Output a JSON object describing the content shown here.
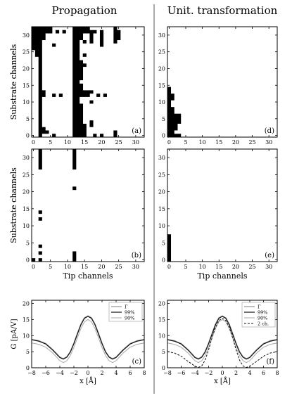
{
  "titles": {
    "left": "Propagation",
    "right": "Unit. transformation"
  },
  "colors": {
    "ink": "#000000",
    "black_curve": "#111111",
    "gray_dark": "#6f6f6f",
    "gray_light": "#a8a8a8",
    "divider": "#555555"
  },
  "chart_data": [
    {
      "type": "heatmap",
      "panel": "(a)",
      "column": "Propagation",
      "xlabel": "",
      "ylabel": "Substrate channels",
      "xlim": [
        -0.5,
        32.5
      ],
      "ylim": [
        -0.5,
        32.5
      ],
      "xticks": [
        0,
        5,
        10,
        15,
        20,
        25,
        30
      ],
      "yticks": [
        0,
        5,
        10,
        15,
        20,
        25,
        30
      ],
      "filled_cells": [
        [
          0,
          26,
          32
        ],
        [
          1,
          24,
          32
        ],
        [
          2,
          0,
          32
        ],
        [
          3,
          1,
          2
        ],
        [
          3,
          12,
          13
        ],
        [
          3,
          29,
          32
        ],
        [
          4,
          1,
          1
        ],
        [
          4,
          31,
          32
        ],
        [
          5,
          31,
          32
        ],
        [
          6,
          0,
          0
        ],
        [
          6,
          12,
          12
        ],
        [
          6,
          27,
          27
        ],
        [
          7,
          31,
          31
        ],
        [
          8,
          12,
          12
        ],
        [
          9,
          31,
          31
        ],
        [
          12,
          0,
          32
        ],
        [
          13,
          0,
          32
        ],
        [
          14,
          0,
          9
        ],
        [
          14,
          12,
          15
        ],
        [
          14,
          17,
          22
        ],
        [
          14,
          29,
          32
        ],
        [
          15,
          0,
          3
        ],
        [
          15,
          12,
          13
        ],
        [
          15,
          21,
          21
        ],
        [
          15,
          24,
          24
        ],
        [
          15,
          28,
          28
        ],
        [
          15,
          31,
          32
        ],
        [
          16,
          12,
          13
        ],
        [
          16,
          31,
          32
        ],
        [
          17,
          3,
          4
        ],
        [
          17,
          10,
          10
        ],
        [
          17,
          13,
          13
        ],
        [
          17,
          28,
          31
        ],
        [
          18,
          0,
          0
        ],
        [
          18,
          31,
          31
        ],
        [
          19,
          12,
          12
        ],
        [
          20,
          0,
          0
        ],
        [
          20,
          27,
          31
        ],
        [
          21,
          12,
          12
        ],
        [
          24,
          0,
          1
        ],
        [
          24,
          28,
          32
        ],
        [
          25,
          29,
          31
        ]
      ]
    },
    {
      "type": "heatmap",
      "panel": "(b)",
      "column": "Propagation",
      "xlabel": "Tip channels",
      "ylabel": "Substrate channels",
      "xlim": [
        -0.5,
        32.5
      ],
      "ylim": [
        -0.5,
        32.5
      ],
      "xticks": [
        0,
        5,
        10,
        15,
        20,
        25,
        30
      ],
      "yticks": [
        0,
        5,
        10,
        15,
        20,
        25,
        30
      ],
      "filled_cells": [
        [
          0,
          0,
          0
        ],
        [
          2,
          0,
          0
        ],
        [
          2,
          2,
          2
        ],
        [
          2,
          4,
          4
        ],
        [
          2,
          12,
          12
        ],
        [
          2,
          14,
          14
        ],
        [
          2,
          27,
          32
        ],
        [
          12,
          0,
          2
        ],
        [
          12,
          21,
          21
        ],
        [
          12,
          27,
          32
        ]
      ]
    },
    {
      "type": "heatmap",
      "panel": "(d)",
      "column": "Unit. transformation",
      "xlabel": "",
      "ylabel": "",
      "xlim": [
        -0.5,
        32.5
      ],
      "ylim": [
        -0.5,
        32.5
      ],
      "xticks": [
        0,
        5,
        10,
        15,
        20,
        25,
        30
      ],
      "yticks": [
        0,
        5,
        10,
        15,
        20,
        25,
        30
      ],
      "filled_cells": [
        [
          0,
          0,
          14
        ],
        [
          1,
          0,
          8
        ],
        [
          1,
          11,
          12
        ],
        [
          2,
          0,
          0
        ],
        [
          2,
          2,
          6
        ],
        [
          3,
          0,
          0
        ],
        [
          3,
          4,
          6
        ]
      ]
    },
    {
      "type": "heatmap",
      "panel": "(e)",
      "column": "Unit. transformation",
      "xlabel": "Tip channels",
      "ylabel": "",
      "xlim": [
        -0.5,
        32.5
      ],
      "ylim": [
        -0.5,
        32.5
      ],
      "xticks": [
        0,
        5,
        10,
        15,
        20,
        25,
        30
      ],
      "yticks": [
        0,
        5,
        10,
        15,
        20,
        25,
        30
      ],
      "filled_cells": [
        [
          0,
          0,
          7
        ]
      ]
    },
    {
      "type": "line",
      "panel": "(c)",
      "column": "Propagation",
      "xlabel": "x [Å]",
      "ylabel": "G [pA/V]",
      "xlim": [
        -8,
        8
      ],
      "ylim": [
        0,
        21
      ],
      "xticks": [
        -8,
        -6,
        -4,
        -2,
        0,
        2,
        4,
        6,
        8
      ],
      "yticks": [
        0,
        5,
        10,
        15,
        20
      ],
      "legend": "top-right",
      "series": [
        {
          "name": "Γ",
          "color": "#a8a8a8",
          "dash": "",
          "width": 1.8,
          "x": [
            -8,
            -7,
            -6,
            -5,
            -4,
            -3.5,
            -3,
            -2.5,
            -2,
            -1.5,
            -1,
            -0.5,
            0,
            0.5,
            1,
            1.5,
            2,
            2.5,
            3,
            3.5,
            4,
            5,
            6,
            7,
            8
          ],
          "y": [
            8.8,
            8.4,
            7.5,
            5.6,
            3.3,
            2.8,
            3.4,
            5.0,
            7.6,
            10.6,
            13.5,
            15.5,
            16.1,
            15.5,
            13.5,
            10.6,
            7.6,
            5.0,
            3.4,
            2.8,
            3.3,
            5.6,
            7.5,
            8.4,
            8.8
          ]
        },
        {
          "name": "99%",
          "color": "#111111",
          "dash": "",
          "width": 1.2,
          "x": [
            -8,
            -7,
            -6,
            -5,
            -4,
            -3.5,
            -3,
            -2.5,
            -2,
            -1.5,
            -1,
            -0.5,
            0,
            0.5,
            1,
            1.5,
            2,
            2.5,
            3,
            3.5,
            4,
            5,
            6,
            7,
            8
          ],
          "y": [
            8.7,
            8.3,
            7.4,
            5.5,
            3.2,
            2.7,
            3.3,
            4.9,
            7.5,
            10.5,
            13.4,
            15.4,
            16.0,
            15.4,
            13.4,
            10.5,
            7.5,
            4.9,
            3.3,
            2.7,
            3.2,
            5.5,
            7.4,
            8.3,
            8.7
          ]
        },
        {
          "name": "90%",
          "color": "#a8a8a8",
          "dash": "",
          "width": 1.0,
          "x": [
            -8,
            -7,
            -6,
            -5,
            -4,
            -3.5,
            -3,
            -2.5,
            -2,
            -1.5,
            -1,
            -0.5,
            0,
            0.5,
            1,
            1.5,
            2,
            2.5,
            3,
            3.5,
            4,
            5,
            6,
            7,
            8
          ],
          "y": [
            7.7,
            7.3,
            6.4,
            4.6,
            2.2,
            1.6,
            2.2,
            3.8,
            6.3,
            9.3,
            12.2,
            14.3,
            15.0,
            14.3,
            12.2,
            9.3,
            6.3,
            3.8,
            2.2,
            1.6,
            2.2,
            4.6,
            6.4,
            7.3,
            7.7
          ]
        }
      ]
    },
    {
      "type": "line",
      "panel": "(f)",
      "column": "Unit. transformation",
      "xlabel": "x [Å]",
      "ylabel": "",
      "xlim": [
        -8,
        8
      ],
      "ylim": [
        0,
        21
      ],
      "xticks": [
        -8,
        -6,
        -4,
        -2,
        0,
        2,
        4,
        6,
        8
      ],
      "yticks": [
        0,
        5,
        10,
        15,
        20
      ],
      "legend": "top-right",
      "series": [
        {
          "name": "Γ",
          "color": "#a8a8a8",
          "dash": "",
          "width": 1.8,
          "x": [
            -8,
            -7,
            -6,
            -5,
            -4,
            -3.5,
            -3,
            -2.5,
            -2,
            -1.5,
            -1,
            -0.5,
            0,
            0.5,
            1,
            1.5,
            2,
            2.5,
            3,
            3.5,
            4,
            5,
            6,
            7,
            8
          ],
          "y": [
            8.8,
            8.4,
            7.5,
            5.6,
            3.3,
            2.8,
            3.4,
            5.0,
            7.6,
            10.6,
            13.5,
            15.5,
            16.1,
            15.5,
            13.5,
            10.6,
            7.6,
            5.0,
            3.4,
            2.8,
            3.3,
            5.6,
            7.5,
            8.4,
            8.8
          ]
        },
        {
          "name": "99%",
          "color": "#111111",
          "dash": "",
          "width": 1.2,
          "x": [
            -8,
            -7,
            -6,
            -5,
            -4,
            -3.5,
            -3,
            -2.5,
            -2,
            -1.5,
            -1,
            -0.5,
            0,
            0.5,
            1,
            1.5,
            2,
            2.5,
            3,
            3.5,
            4,
            5,
            6,
            7,
            8
          ],
          "y": [
            8.7,
            8.3,
            7.4,
            5.5,
            3.2,
            2.7,
            3.3,
            4.9,
            7.5,
            10.5,
            13.4,
            15.4,
            16.0,
            15.4,
            13.4,
            10.5,
            7.5,
            4.9,
            3.3,
            2.7,
            3.2,
            5.5,
            7.4,
            8.3,
            8.7
          ]
        },
        {
          "name": "90%",
          "color": "#a8a8a8",
          "dash": "",
          "width": 1.0,
          "x": [
            -8,
            -7,
            -6,
            -5,
            -4,
            -3.5,
            -3,
            -2.5,
            -2,
            -1.5,
            -1,
            -0.5,
            0,
            0.5,
            1,
            1.5,
            2,
            2.5,
            3,
            3.5,
            4,
            5,
            6,
            7,
            8
          ],
          "y": [
            7.7,
            7.3,
            6.4,
            4.6,
            2.2,
            1.6,
            2.2,
            3.8,
            6.3,
            9.3,
            12.2,
            14.3,
            15.0,
            14.3,
            12.2,
            9.3,
            6.3,
            3.8,
            2.2,
            1.6,
            2.2,
            4.6,
            6.4,
            7.3,
            7.7
          ]
        },
        {
          "name": "2 ch.",
          "color": "#111111",
          "dash": "3,2",
          "width": 1.0,
          "x": [
            -8,
            -7,
            -6,
            -5,
            -4,
            -3.5,
            -3,
            -2.5,
            -2,
            -1.5,
            -1,
            -0.5,
            0,
            0.5,
            1,
            1.5,
            2,
            2.5,
            3,
            3.5,
            4,
            5,
            6,
            7,
            8
          ],
          "y": [
            5.0,
            4.6,
            3.6,
            2.0,
            0.5,
            0.1,
            0.6,
            2.4,
            5.6,
            9.4,
            12.6,
            14.7,
            15.4,
            14.7,
            12.6,
            9.4,
            5.6,
            2.4,
            0.6,
            0.1,
            0.5,
            2.0,
            3.6,
            4.6,
            5.0
          ]
        }
      ]
    }
  ]
}
